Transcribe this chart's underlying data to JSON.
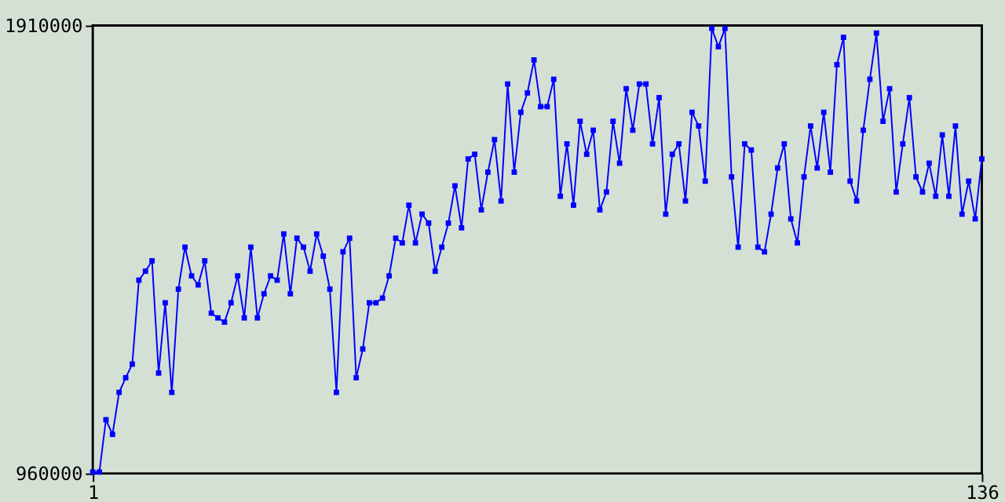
{
  "chart_data": {
    "type": "line",
    "x": [
      1,
      2,
      3,
      4,
      5,
      6,
      7,
      8,
      9,
      10,
      11,
      12,
      13,
      14,
      15,
      16,
      17,
      18,
      19,
      20,
      21,
      22,
      23,
      24,
      25,
      26,
      27,
      28,
      29,
      30,
      31,
      32,
      33,
      34,
      35,
      36,
      37,
      38,
      39,
      40,
      41,
      42,
      43,
      44,
      45,
      46,
      47,
      48,
      49,
      50,
      51,
      52,
      53,
      54,
      55,
      56,
      57,
      58,
      59,
      60,
      61,
      62,
      63,
      64,
      65,
      66,
      67,
      68,
      69,
      70,
      71,
      72,
      73,
      74,
      75,
      76,
      77,
      78,
      79,
      80,
      81,
      82,
      83,
      84,
      85,
      86,
      87,
      88,
      89,
      90,
      91,
      92,
      93,
      94,
      95,
      96,
      97,
      98,
      99,
      100,
      101,
      102,
      103,
      104,
      105,
      106,
      107,
      108,
      109,
      110,
      111,
      112,
      113,
      114,
      115,
      116,
      117,
      118,
      119,
      120,
      121,
      122,
      123,
      124,
      125,
      126,
      127,
      128,
      129,
      130,
      131,
      132,
      133,
      134,
      135,
      136
    ],
    "series": [
      {
        "color": "#0000ff",
        "values": [
          963000,
          963000,
          1074000,
          1043000,
          1132000,
          1163000,
          1192000,
          1370000,
          1389000,
          1411000,
          1173000,
          1322000,
          1132000,
          1351000,
          1440000,
          1379000,
          1360000,
          1411000,
          1300000,
          1290000,
          1281000,
          1322000,
          1379000,
          1290000,
          1440000,
          1290000,
          1341000,
          1379000,
          1370000,
          1468000,
          1341000,
          1459000,
          1440000,
          1389000,
          1468000,
          1421000,
          1351000,
          1132000,
          1430000,
          1459000,
          1163000,
          1224000,
          1322000,
          1322000,
          1332000,
          1379000,
          1459000,
          1449000,
          1529000,
          1449000,
          1510000,
          1491000,
          1389000,
          1440000,
          1491000,
          1570000,
          1481000,
          1627000,
          1637000,
          1519000,
          1599000,
          1668000,
          1538000,
          1786000,
          1599000,
          1726000,
          1767000,
          1837000,
          1738000,
          1738000,
          1796000,
          1548000,
          1659000,
          1529000,
          1707000,
          1637000,
          1688000,
          1519000,
          1557000,
          1707000,
          1618000,
          1776000,
          1688000,
          1786000,
          1786000,
          1659000,
          1757000,
          1510000,
          1637000,
          1659000,
          1538000,
          1726000,
          1697000,
          1580000,
          1904000,
          1865000,
          1904000,
          1589000,
          1440000,
          1659000,
          1646000,
          1440000,
          1430000,
          1510000,
          1608000,
          1659000,
          1500000,
          1449000,
          1589000,
          1697000,
          1608000,
          1726000,
          1599000,
          1827000,
          1885000,
          1580000,
          1538000,
          1688000,
          1796000,
          1894000,
          1707000,
          1776000,
          1557000,
          1659000,
          1757000,
          1589000,
          1557000,
          1618000,
          1548000,
          1678000,
          1548000,
          1697000,
          1510000,
          1580000,
          1500000,
          1627000
        ]
      }
    ],
    "xlim": [
      1,
      136
    ],
    "xticks": [
      1,
      136
    ],
    "ylim": [
      960000,
      1910000
    ],
    "yticks": [
      960000,
      1910000
    ],
    "grid": false,
    "legend": false,
    "marker": "square",
    "line_style": "solid"
  }
}
